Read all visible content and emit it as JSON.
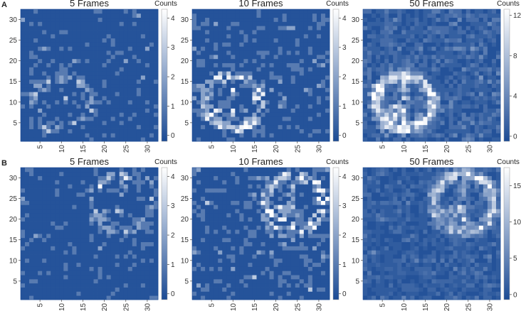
{
  "chart_data": {
    "type": "heatmap",
    "grid_size": [
      32,
      32
    ],
    "x_ticks": [
      5,
      10,
      15,
      20,
      25,
      30
    ],
    "y_ticks": [
      5,
      10,
      15,
      20,
      25,
      30
    ],
    "colorbar_label": "Counts",
    "colormap": [
      "#1b4b95",
      "#ffffff"
    ],
    "note": "counts are approximated from a ring-with-spokes pattern plus background noise",
    "rows": [
      {
        "label": "A",
        "ring_center": [
          10,
          10
        ],
        "ring_radius": 6.5,
        "panels": [
          {
            "title": "5 Frames",
            "frames": 5,
            "clim": [
              -0.2,
              4.3
            ],
            "cbar_ticks": [
              0,
              1,
              2,
              3,
              4
            ],
            "seed": 11
          },
          {
            "title": "10 Frames",
            "frames": 10,
            "clim": [
              -0.2,
              4.3
            ],
            "cbar_ticks": [
              0,
              1,
              2,
              3,
              4
            ],
            "seed": 12
          },
          {
            "title": "50 Frames",
            "frames": 50,
            "clim": [
              -0.5,
              12.6
            ],
            "cbar_ticks": [
              0,
              4,
              8,
              12
            ],
            "seed": 13
          }
        ]
      },
      {
        "label": "B",
        "ring_center": [
          24,
          24
        ],
        "ring_radius": 7,
        "panels": [
          {
            "title": "5 Frames",
            "frames": 5,
            "clim": [
              -0.2,
              4.3
            ],
            "cbar_ticks": [
              0,
              1,
              2,
              3,
              4
            ],
            "seed": 21
          },
          {
            "title": "10 Frames",
            "frames": 10,
            "clim": [
              -0.2,
              4.3
            ],
            "cbar_ticks": [
              0,
              1,
              2,
              3,
              4
            ],
            "seed": 22
          },
          {
            "title": "50 Frames",
            "frames": 50,
            "clim": [
              -0.7,
              17.5
            ],
            "cbar_ticks": [
              0,
              5,
              10,
              15
            ],
            "seed": 23
          }
        ]
      }
    ]
  }
}
